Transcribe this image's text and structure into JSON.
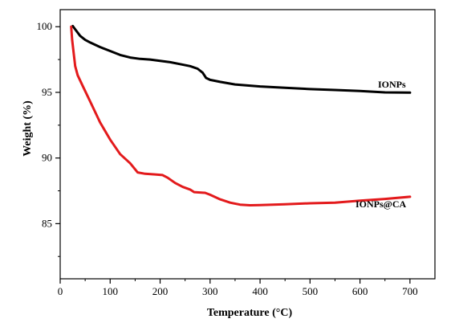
{
  "chart_data": {
    "type": "line",
    "xlabel": "Temperature (°C)",
    "ylabel": "Weight (%)",
    "xlim": [
      0,
      750
    ],
    "ylim": [
      80.8,
      101.3
    ],
    "x_ticks": [
      0,
      100,
      200,
      300,
      400,
      500,
      600,
      700
    ],
    "y_ticks": [
      85,
      90,
      95,
      100
    ],
    "x_tick_labels": [
      "0",
      "100",
      "200",
      "300",
      "400",
      "500",
      "600",
      "700"
    ],
    "y_tick_labels": [
      "85",
      "90",
      "95",
      "100"
    ],
    "grid": false,
    "legend": "none",
    "series": [
      {
        "name": "IONPs",
        "color": "#000000",
        "points": [
          [
            25,
            100.05
          ],
          [
            30,
            99.8
          ],
          [
            40,
            99.3
          ],
          [
            50,
            99.0
          ],
          [
            60,
            98.8
          ],
          [
            80,
            98.45
          ],
          [
            100,
            98.15
          ],
          [
            120,
            97.85
          ],
          [
            140,
            97.65
          ],
          [
            160,
            97.55
          ],
          [
            180,
            97.5
          ],
          [
            200,
            97.4
          ],
          [
            220,
            97.3
          ],
          [
            240,
            97.15
          ],
          [
            260,
            97.0
          ],
          [
            275,
            96.8
          ],
          [
            285,
            96.5
          ],
          [
            292,
            96.1
          ],
          [
            300,
            95.95
          ],
          [
            320,
            95.8
          ],
          [
            350,
            95.6
          ],
          [
            400,
            95.45
          ],
          [
            450,
            95.35
          ],
          [
            500,
            95.25
          ],
          [
            550,
            95.18
          ],
          [
            600,
            95.1
          ],
          [
            650,
            95.0
          ],
          [
            700,
            94.98
          ]
        ]
      },
      {
        "name": "IONPs@CA",
        "color": "#e31a1c",
        "points": [
          [
            22,
            100.0
          ],
          [
            24,
            99.0
          ],
          [
            27,
            98.0
          ],
          [
            30,
            97.0
          ],
          [
            35,
            96.3
          ],
          [
            45,
            95.5
          ],
          [
            60,
            94.3
          ],
          [
            80,
            92.7
          ],
          [
            100,
            91.4
          ],
          [
            120,
            90.3
          ],
          [
            140,
            89.6
          ],
          [
            155,
            88.9
          ],
          [
            170,
            88.8
          ],
          [
            190,
            88.75
          ],
          [
            205,
            88.7
          ],
          [
            215,
            88.5
          ],
          [
            230,
            88.1
          ],
          [
            245,
            87.8
          ],
          [
            260,
            87.6
          ],
          [
            268,
            87.4
          ],
          [
            290,
            87.35
          ],
          [
            300,
            87.2
          ],
          [
            320,
            86.85
          ],
          [
            340,
            86.6
          ],
          [
            360,
            86.45
          ],
          [
            380,
            86.4
          ],
          [
            400,
            86.42
          ],
          [
            450,
            86.48
          ],
          [
            500,
            86.55
          ],
          [
            550,
            86.6
          ],
          [
            600,
            86.75
          ],
          [
            650,
            86.88
          ],
          [
            700,
            87.05
          ]
        ]
      }
    ]
  },
  "labels": {
    "series1": "IONPs",
    "series2": "IONPs@CA"
  }
}
